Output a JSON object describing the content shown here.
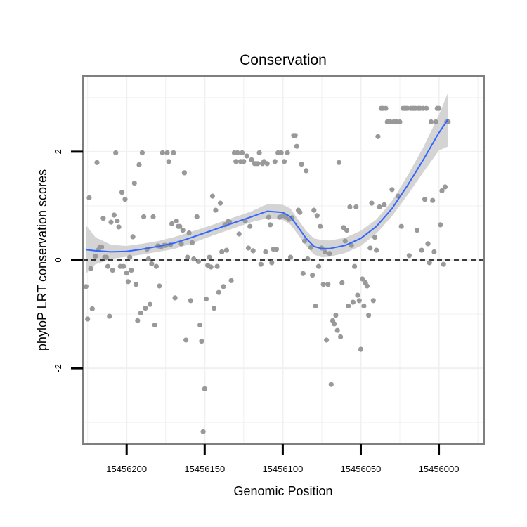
{
  "chart_data": {
    "type": "scatter",
    "title": "Conservation",
    "xlabel": "Genomic Position",
    "ylabel": "phyloP LRT conservation scores",
    "x_reversed": true,
    "xlim": [
      15456228,
      15455971
    ],
    "ylim": [
      -3.4,
      3.4
    ],
    "x_ticks": [
      15456200,
      15456150,
      15456100,
      15456050,
      15456000
    ],
    "x_tick_labels": [
      "15456200",
      "15456150",
      "15456100",
      "15456050",
      "15456000"
    ],
    "y_ticks": [
      -2,
      0,
      2
    ],
    "y_tick_labels": [
      "-2",
      "0",
      "2"
    ],
    "reference_line": {
      "y": 0,
      "style": "dashed"
    },
    "grid": true,
    "colors": {
      "points": "#999999",
      "smooth": "#3366ff",
      "ribbon": "#d4d4d4",
      "panel_border": "#7f7f7f",
      "grid": "#f0f0f0"
    },
    "points": [
      [
        15456226,
        -0.49
      ],
      [
        15456225,
        -1.09
      ],
      [
        15456224,
        1.15
      ],
      [
        15456223,
        -0.16
      ],
      [
        15456222,
        -0.9
      ],
      [
        15456220,
        0.07
      ],
      [
        15456219,
        1.8
      ],
      [
        15456218,
        0.19
      ],
      [
        15456217,
        0.24
      ],
      [
        15456216,
        0.24
      ],
      [
        15456215,
        0.77
      ],
      [
        15456214,
        0.05
      ],
      [
        15456213,
        0.05
      ],
      [
        15456212,
        -0.12
      ],
      [
        15456211,
        -1.04
      ],
      [
        15456210,
        0.7
      ],
      [
        15456209,
        -0.19
      ],
      [
        15456208,
        0.83
      ],
      [
        15456207,
        1.98
      ],
      [
        15456206,
        0.72
      ],
      [
        15456205,
        0.61
      ],
      [
        15456204,
        -0.12
      ],
      [
        15456203,
        1.25
      ],
      [
        15456202,
        -0.12
      ],
      [
        15456201,
        1.12
      ],
      [
        15456200,
        -0.24
      ],
      [
        15456199,
        -0.4
      ],
      [
        15456198,
        0.05
      ],
      [
        15456197,
        -0.19
      ],
      [
        15456196,
        0.43
      ],
      [
        15456195,
        1.42
      ],
      [
        15456194,
        -0.45
      ],
      [
        15456193,
        -1.12
      ],
      [
        15456192,
        1.76
      ],
      [
        15456191,
        -0.98
      ],
      [
        15456190,
        1.98
      ],
      [
        15456189,
        0.8
      ],
      [
        15456188,
        -0.89
      ],
      [
        15456187,
        0.2
      ],
      [
        15456186,
        0.02
      ],
      [
        15456185,
        -0.82
      ],
      [
        15456184,
        -0.07
      ],
      [
        15456183,
        0.8
      ],
      [
        15456182,
        -1.2
      ],
      [
        15456181,
        -0.12
      ],
      [
        15456180,
        0.26
      ],
      [
        15456179,
        -0.48
      ],
      [
        15456178,
        0.24
      ],
      [
        15456177,
        1.98
      ],
      [
        15456176,
        0.27
      ],
      [
        15456175,
        0.27
      ],
      [
        15456174,
        1.98
      ],
      [
        15456173,
        1.82
      ],
      [
        15456172,
        0.28
      ],
      [
        15456171,
        0.67
      ],
      [
        15456170,
        1.98
      ],
      [
        15456169,
        -0.7
      ],
      [
        15456168,
        0.72
      ],
      [
        15456167,
        0.62
      ],
      [
        15456166,
        0.62
      ],
      [
        15456165,
        0.3
      ],
      [
        15456164,
        0.55
      ],
      [
        15456163,
        1.61
      ],
      [
        15456162,
        -1.48
      ],
      [
        15456161,
        0.05
      ],
      [
        15456160,
        0.5
      ],
      [
        15456159,
        -0.75
      ],
      [
        15456158,
        0.32
      ],
      [
        15456157,
        0.02
      ],
      [
        15456155,
        0.8
      ],
      [
        15456154,
        -0.03
      ],
      [
        15456153,
        -1.2
      ],
      [
        15456152,
        -1.5
      ],
      [
        15456151,
        -3.17
      ],
      [
        15456150,
        -2.38
      ],
      [
        15456149,
        -0.72
      ],
      [
        15456148,
        -0.1
      ],
      [
        15456147,
        0.05
      ],
      [
        15456146,
        -0.13
      ],
      [
        15456145,
        1.18
      ],
      [
        15456144,
        -0.89
      ],
      [
        15456143,
        0.92
      ],
      [
        15456142,
        -0.12
      ],
      [
        15456141,
        -0.6
      ],
      [
        15456140,
        1.05
      ],
      [
        15456139,
        0.15
      ],
      [
        15456138,
        -0.49
      ],
      [
        15456137,
        0.65
      ],
      [
        15456136,
        0.18
      ],
      [
        15456135,
        0.71
      ],
      [
        15456134,
        0.7
      ],
      [
        15456133,
        -0.38
      ],
      [
        15456131,
        1.98
      ],
      [
        15456130,
        1.82
      ],
      [
        15456129,
        1.98
      ],
      [
        15456128,
        0.48
      ],
      [
        15456127,
        1.82
      ],
      [
        15456126,
        1.98
      ],
      [
        15456125,
        1.82
      ],
      [
        15456124,
        0.72
      ],
      [
        15456123,
        1.92
      ],
      [
        15456122,
        0.22
      ],
      [
        15456121,
        0.62
      ],
      [
        15456120,
        1.85
      ],
      [
        15456119,
        0.17
      ],
      [
        15456118,
        1.78
      ],
      [
        15456117,
        1.78
      ],
      [
        15456116,
        1.78
      ],
      [
        15456115,
        1.98
      ],
      [
        15456114,
        -0.08
      ],
      [
        15456113,
        1.78
      ],
      [
        15456112,
        1.82
      ],
      [
        15456111,
        0.15
      ],
      [
        15456110,
        1.78
      ],
      [
        15456109,
        0.79
      ],
      [
        15456108,
        0.65
      ],
      [
        15456107,
        -0.05
      ],
      [
        15456106,
        0.2
      ],
      [
        15456105,
        1.82
      ],
      [
        15456104,
        0.2
      ],
      [
        15456103,
        1.98
      ],
      [
        15456102,
        0.79
      ],
      [
        15456101,
        1.98
      ],
      [
        15456100,
        0.82
      ],
      [
        15456099,
        1.82
      ],
      [
        15456098,
        0.79
      ],
      [
        15456097,
        1.98
      ],
      [
        15456096,
        0.75
      ],
      [
        15456095,
        0.05
      ],
      [
        15456094,
        0.78
      ],
      [
        15456093,
        2.3
      ],
      [
        15456092,
        2.3
      ],
      [
        15456091,
        2.1
      ],
      [
        15456090,
        0.92
      ],
      [
        15456089,
        0.88
      ],
      [
        15456088,
        1.77
      ],
      [
        15456087,
        -0.25
      ],
      [
        15456086,
        0.35
      ],
      [
        15456085,
        1.65
      ],
      [
        15456084,
        0.02
      ],
      [
        15456082,
        0.23
      ],
      [
        15456081,
        -0.28
      ],
      [
        15456080,
        0.92
      ],
      [
        15456079,
        -0.85
      ],
      [
        15456078,
        0.82
      ],
      [
        15456077,
        -0.12
      ],
      [
        15456076,
        0.62
      ],
      [
        15456075,
        0.22
      ],
      [
        15456074,
        -0.45
      ],
      [
        15456073,
        0.15
      ],
      [
        15456072,
        -1.48
      ],
      [
        15456071,
        -0.45
      ],
      [
        15456070,
        0.12
      ],
      [
        15456069,
        -2.3
      ],
      [
        15456068,
        -1.12
      ],
      [
        15456067,
        -1.18
      ],
      [
        15456066,
        -1.02
      ],
      [
        15456065,
        -1.3
      ],
      [
        15456064,
        1.8
      ],
      [
        15456063,
        -1.42
      ],
      [
        15456062,
        -0.42
      ],
      [
        15456061,
        0.6
      ],
      [
        15456060,
        0.35
      ],
      [
        15456059,
        0.55
      ],
      [
        15456058,
        -0.85
      ],
      [
        15456057,
        0.98
      ],
      [
        15456056,
        0.27
      ],
      [
        15456055,
        -0.78
      ],
      [
        15456054,
        -0.12
      ],
      [
        15456053,
        0.98
      ],
      [
        15456052,
        -0.65
      ],
      [
        15456051,
        -0.75
      ],
      [
        15456050,
        -1.65
      ],
      [
        15456049,
        -0.35
      ],
      [
        15456048,
        -0.85
      ],
      [
        15456047,
        -0.42
      ],
      [
        15456046,
        -0.48
      ],
      [
        15456045,
        -1.02
      ],
      [
        15456044,
        0.22
      ],
      [
        15456043,
        1.05
      ],
      [
        15456042,
        -0.75
      ],
      [
        15456041,
        0.42
      ],
      [
        15456040,
        0.18
      ],
      [
        15456039,
        2.28
      ],
      [
        15456038,
        0.98
      ],
      [
        15456037,
        2.8
      ],
      [
        15456036,
        2.8
      ],
      [
        15456035,
        1.02
      ],
      [
        15456034,
        2.8
      ],
      [
        15456033,
        2.55
      ],
      [
        15456032,
        2.55
      ],
      [
        15456031,
        2.55
      ],
      [
        15456030,
        1.3
      ],
      [
        15456029,
        2.55
      ],
      [
        15456028,
        2.55
      ],
      [
        15456027,
        2.55
      ],
      [
        15456026,
        1.18
      ],
      [
        15456025,
        2.55
      ],
      [
        15456024,
        0.62
      ],
      [
        15456023,
        2.8
      ],
      [
        15456022,
        2.8
      ],
      [
        15456021,
        2.8
      ],
      [
        15456020,
        2.8
      ],
      [
        15456019,
        0.08
      ],
      [
        15456018,
        2.8
      ],
      [
        15456017,
        2.8
      ],
      [
        15456016,
        2.8
      ],
      [
        15456015,
        2.8
      ],
      [
        15456014,
        0.55
      ],
      [
        15456013,
        2.8
      ],
      [
        15456012,
        2.8
      ],
      [
        15456011,
        0.18
      ],
      [
        15456010,
        2.8
      ],
      [
        15456009,
        1.12
      ],
      [
        15456008,
        2.8
      ],
      [
        15456007,
        0.3
      ],
      [
        15456006,
        -0.05
      ],
      [
        15456005,
        2.55
      ],
      [
        15456004,
        1.1
      ],
      [
        15456003,
        0.15
      ],
      [
        15456002,
        2.55
      ],
      [
        15456001,
        2.8
      ],
      [
        15456000,
        2.8
      ],
      [
        15455999,
        0.65
      ],
      [
        15455998,
        1.28
      ],
      [
        15455997,
        -0.08
      ],
      [
        15455996,
        1.35
      ],
      [
        15455995,
        2.55
      ],
      [
        15455994,
        2.55
      ]
    ],
    "smooth": {
      "x": [
        15456226,
        15456220,
        15456210,
        15456200,
        15456190,
        15456180,
        15456170,
        15456160,
        15456150,
        15456140,
        15456130,
        15456120,
        15456110,
        15456100,
        15456095,
        15456090,
        15456085,
        15456080,
        15456075,
        15456070,
        15456060,
        15456050,
        15456040,
        15456030,
        15456020,
        15456010,
        15456000,
        15455994
      ],
      "y": [
        0.19,
        0.17,
        0.15,
        0.16,
        0.2,
        0.25,
        0.31,
        0.4,
        0.5,
        0.6,
        0.7,
        0.8,
        0.9,
        0.88,
        0.8,
        0.6,
        0.4,
        0.25,
        0.21,
        0.21,
        0.27,
        0.4,
        0.62,
        0.95,
        1.38,
        1.85,
        2.35,
        2.6
      ],
      "lower": [
        -0.25,
        -0.08,
        0.02,
        0.06,
        0.1,
        0.15,
        0.2,
        0.29,
        0.4,
        0.5,
        0.6,
        0.7,
        0.77,
        0.74,
        0.65,
        0.46,
        0.26,
        0.1,
        0.05,
        0.06,
        0.13,
        0.26,
        0.49,
        0.81,
        1.2,
        1.62,
        2.02,
        2.1
      ],
      "upper": [
        0.64,
        0.42,
        0.28,
        0.26,
        0.3,
        0.35,
        0.42,
        0.51,
        0.6,
        0.7,
        0.8,
        0.9,
        1.03,
        1.02,
        0.95,
        0.74,
        0.54,
        0.4,
        0.37,
        0.36,
        0.41,
        0.54,
        0.75,
        1.09,
        1.56,
        2.08,
        2.68,
        3.1
      ]
    }
  }
}
